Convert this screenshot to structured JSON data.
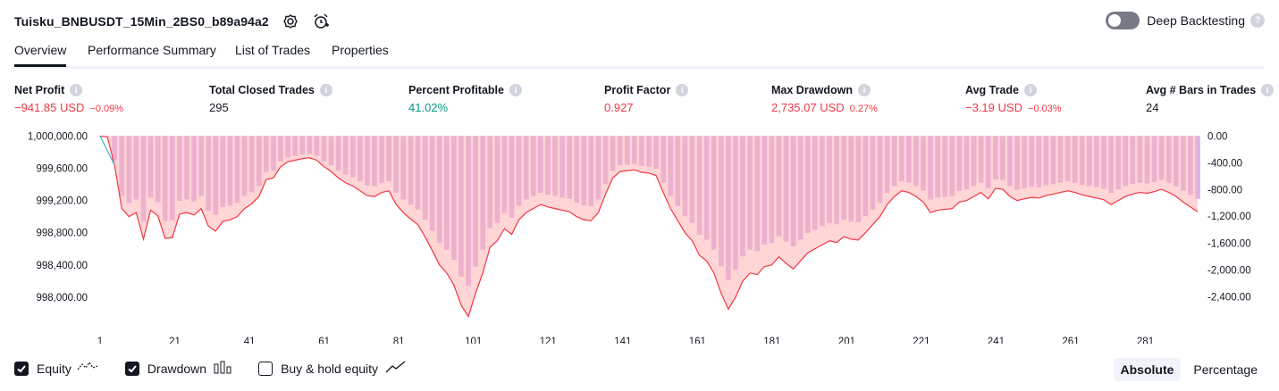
{
  "header": {
    "title": "Tuisku_BNBUSDT_15Min_2BS0_b89a94a2",
    "settings_icon": "gear-icon",
    "alert_icon": "alarm-add-icon"
  },
  "deep_backtesting": {
    "label": "Deep Backtesting",
    "enabled": false,
    "help": "?"
  },
  "tabs": [
    {
      "label": "Overview",
      "active": true
    },
    {
      "label": "Performance Summary",
      "active": false
    },
    {
      "label": "List of Trades",
      "active": false
    },
    {
      "label": "Properties",
      "active": false
    }
  ],
  "metrics": [
    {
      "label": "Net Profit",
      "value": "−941.85 USD",
      "sub": "−0.09%",
      "color": "red"
    },
    {
      "label": "Total Closed Trades",
      "value": "295",
      "sub": "",
      "color": "dark"
    },
    {
      "label": "Percent Profitable",
      "value": "41.02%",
      "sub": "",
      "color": "green"
    },
    {
      "label": "Profit Factor",
      "value": "0.927",
      "sub": "",
      "color": "red"
    },
    {
      "label": "Max Drawdown",
      "value": "2,735.07 USD",
      "sub": "0.27%",
      "color": "red"
    },
    {
      "label": "Avg Trade",
      "value": "−3.19 USD",
      "sub": "−0.03%",
      "color": "red"
    },
    {
      "label": "Avg # Bars in Trades",
      "value": "24",
      "sub": "",
      "color": "dark"
    }
  ],
  "chart_data": {
    "type": "area",
    "x_ticks": [
      "1",
      "21",
      "41",
      "61",
      "81",
      "101",
      "121",
      "141",
      "161",
      "181",
      "201",
      "221",
      "241",
      "261",
      "281"
    ],
    "left_axis_ticks": [
      "1,000,000.00",
      "999,600.00",
      "999,200.00",
      "998,800.00",
      "998,400.00",
      "998,000.00"
    ],
    "right_axis_ticks": [
      "0.00",
      "-400.00",
      "-800.00",
      "-1,200.00",
      "-1,600.00",
      "-2,000.00",
      "-2,400.00"
    ],
    "left_ylim": [
      997700,
      1000060
    ],
    "right_ylim": [
      -2770,
      70
    ],
    "equity_start": 1000000,
    "equity_end": 999058.15,
    "equity": [
      1000000,
      999990,
      999640,
      999100,
      999000,
      999050,
      998720,
      999080,
      999010,
      998730,
      998740,
      999030,
      999050,
      999020,
      999100,
      998880,
      998820,
      998940,
      998960,
      999000,
      999100,
      999160,
      999250,
      999460,
      999480,
      999620,
      999680,
      999700,
      999720,
      999730,
      999700,
      999620,
      999560,
      999480,
      999420,
      999380,
      999320,
      999260,
      999250,
      999300,
      999320,
      999150,
      999050,
      998970,
      998900,
      998750,
      998580,
      998400,
      998300,
      998150,
      997900,
      997760,
      998050,
      998300,
      998620,
      998700,
      998850,
      998780,
      998960,
      999050,
      999100,
      999150,
      999120,
      999100,
      999080,
      999060,
      999000,
      998960,
      998950,
      999050,
      999280,
      999480,
      999560,
      999570,
      999580,
      999550,
      999540,
      999510,
      999300,
      999100,
      998950,
      998800,
      998700,
      998520,
      998450,
      998300,
      998050,
      997850,
      998000,
      998200,
      998300,
      998280,
      998380,
      998400,
      998500,
      998420,
      998350,
      998450,
      998550,
      998600,
      998650,
      998700,
      998680,
      998750,
      998720,
      998710,
      998800,
      998900,
      999000,
      999150,
      999250,
      999320,
      999300,
      999250,
      999180,
      999050,
      999080,
      999090,
      999100,
      999180,
      999200,
      999250,
      999300,
      999220,
      999350,
      999340,
      999250,
      999200,
      999220,
      999240,
      999230,
      999260,
      999280,
      999300,
      999320,
      999300,
      999270,
      999250,
      999230,
      999210,
      999150,
      999200,
      999250,
      999280,
      999300,
      999290,
      999310,
      999340,
      999300,
      999250,
      999180,
      999120,
      999060
    ],
    "drawdown": [
      0,
      -10,
      -360,
      -900,
      -1000,
      -950,
      -1280,
      -920,
      -990,
      -1270,
      -1260,
      -970,
      -950,
      -980,
      -900,
      -1120,
      -1180,
      -1060,
      -1040,
      -1000,
      -900,
      -840,
      -750,
      -540,
      -520,
      -380,
      -320,
      -300,
      -280,
      -270,
      -300,
      -380,
      -440,
      -520,
      -580,
      -620,
      -680,
      -740,
      -750,
      -700,
      -680,
      -850,
      -950,
      -1030,
      -1100,
      -1250,
      -1420,
      -1600,
      -1700,
      -1850,
      -2100,
      -2240,
      -1950,
      -1700,
      -1380,
      -1300,
      -1150,
      -1220,
      -1040,
      -950,
      -900,
      -850,
      -880,
      -900,
      -920,
      -940,
      -1000,
      -1040,
      -1050,
      -950,
      -720,
      -520,
      -440,
      -430,
      -420,
      -450,
      -460,
      -490,
      -700,
      -900,
      -1050,
      -1200,
      -1300,
      -1480,
      -1550,
      -1700,
      -1950,
      -2150,
      -2000,
      -1800,
      -1700,
      -1720,
      -1620,
      -1600,
      -1500,
      -1580,
      -1650,
      -1550,
      -1450,
      -1400,
      -1350,
      -1300,
      -1320,
      -1250,
      -1280,
      -1290,
      -1200,
      -1100,
      -1000,
      -850,
      -750,
      -680,
      -700,
      -750,
      -820,
      -950,
      -920,
      -910,
      -900,
      -820,
      -800,
      -750,
      -700,
      -780,
      -650,
      -660,
      -750,
      -800,
      -780,
      -760,
      -770,
      -740,
      -720,
      -700,
      -680,
      -700,
      -730,
      -750,
      -770,
      -790,
      -850,
      -800,
      -750,
      -720,
      -700,
      -710,
      -690,
      -660,
      -700,
      -750,
      -820,
      -880,
      -940
    ]
  },
  "legend": [
    {
      "label": "Equity",
      "checked": true,
      "icon": "equity-line-icon"
    },
    {
      "label": "Drawdown",
      "checked": true,
      "icon": "drawdown-bars-icon"
    },
    {
      "label": "Buy & hold equity",
      "checked": false,
      "icon": "buy-hold-line-icon"
    }
  ],
  "modes": [
    {
      "label": "Absolute",
      "active": true
    },
    {
      "label": "Percentage",
      "active": false
    }
  ],
  "colors": {
    "drawdown_bar": "#d4a6ee",
    "equity_line": "#f23645",
    "equity_fill": "#ffb3b3",
    "equity_start_line": "#3fb0c8"
  }
}
